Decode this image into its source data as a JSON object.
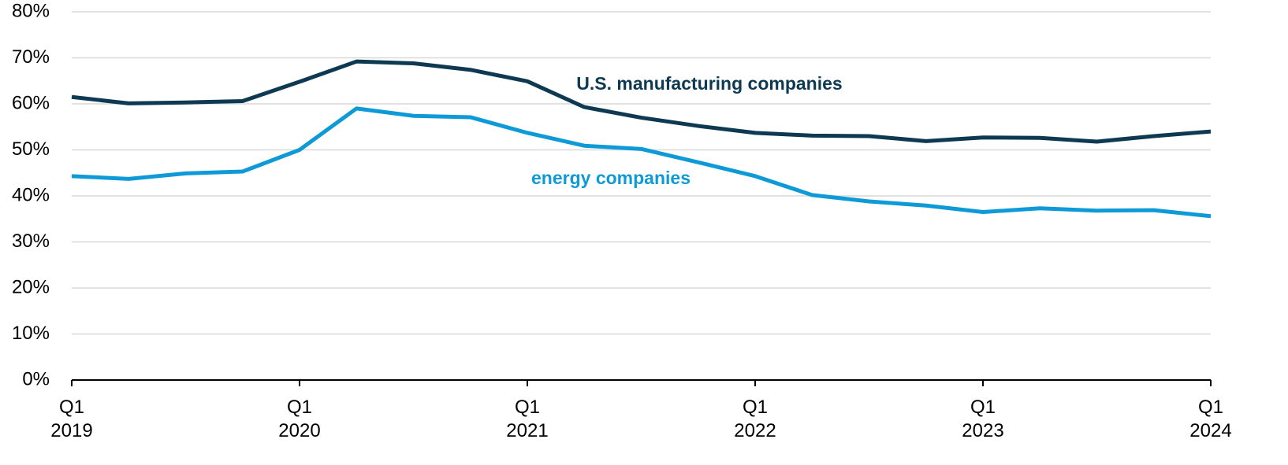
{
  "chart_data": {
    "type": "line",
    "categories": [
      "Q1\n2019",
      null,
      null,
      null,
      "Q1\n2020",
      null,
      null,
      null,
      "Q1\n2021",
      null,
      null,
      null,
      "Q1\n2022",
      null,
      null,
      null,
      "Q1\n2023",
      null,
      null,
      null,
      "Q1\n2024"
    ],
    "series": [
      {
        "name": "U.S. manufacturing companies",
        "color": "#0d3a52",
        "values": [
          61.5,
          60.1,
          60.3,
          60.6,
          64.8,
          69.2,
          68.8,
          67.4,
          64.9,
          59.3,
          57.0,
          55.2,
          53.7,
          53.1,
          53.0,
          51.9,
          52.7,
          52.6,
          51.8,
          53.0,
          54.0
        ]
      },
      {
        "name": "energy companies",
        "color": "#0e9ad7",
        "values": [
          44.3,
          43.7,
          44.9,
          45.3,
          50.0,
          59.0,
          57.4,
          57.1,
          53.7,
          50.9,
          50.2,
          47.3,
          44.3,
          40.2,
          38.8,
          37.9,
          36.5,
          37.3,
          36.8,
          36.9,
          35.6
        ]
      }
    ],
    "ylim": [
      0,
      80
    ],
    "yticks": [
      {
        "value": 0,
        "label": "0%"
      },
      {
        "value": 10,
        "label": "10%"
      },
      {
        "value": 20,
        "label": "20%"
      },
      {
        "value": 30,
        "label": "30%"
      },
      {
        "value": 40,
        "label": "40%"
      },
      {
        "value": 50,
        "label": "50%"
      },
      {
        "value": 60,
        "label": "60%"
      },
      {
        "value": 70,
        "label": "70%"
      },
      {
        "value": 80,
        "label": "80%"
      }
    ],
    "grid": true
  }
}
